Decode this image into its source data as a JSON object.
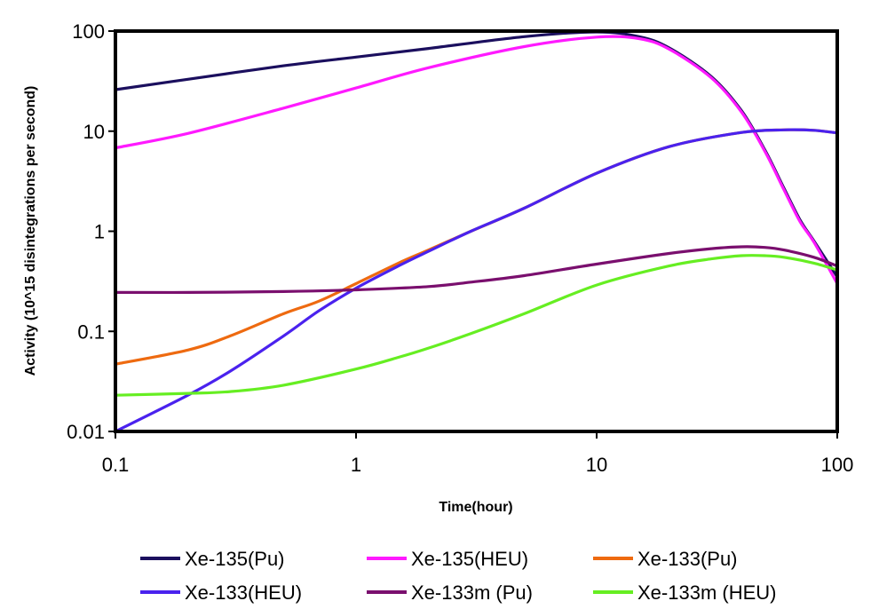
{
  "chart_data": {
    "type": "line",
    "title": "",
    "xlabel": "Time(hour)",
    "ylabel": "Activity (10^15 disintegrations per second)",
    "x_scale": "log",
    "y_scale": "log",
    "xlim": [
      0.1,
      100
    ],
    "ylim": [
      0.01,
      100
    ],
    "x_ticks": [
      "0.1",
      "1",
      "10",
      "100"
    ],
    "y_ticks": [
      "100",
      "10",
      "1",
      "0.1",
      "0.01"
    ],
    "grid": false,
    "legend_position": "bottom",
    "series": [
      {
        "name": "Xe-135(Pu)",
        "color": "#1b0f5e",
        "x": [
          0.1,
          0.2,
          0.5,
          1,
          2,
          5,
          10,
          15,
          20,
          30,
          40,
          50,
          60,
          70,
          80,
          100
        ],
        "y": [
          26,
          33,
          45,
          55,
          67,
          88,
          98,
          88,
          68,
          35,
          16,
          6.5,
          2.7,
          1.3,
          0.8,
          0.35
        ]
      },
      {
        "name": "Xe-135(HEU)",
        "color": "#ff1aff",
        "x": [
          0.1,
          0.2,
          0.5,
          1,
          2,
          5,
          10,
          15,
          20,
          30,
          40,
          50,
          60,
          70,
          80,
          100
        ],
        "y": [
          6.8,
          9.5,
          17,
          27,
          43,
          70,
          87,
          84,
          66,
          34,
          15.5,
          6.3,
          2.6,
          1.25,
          0.78,
          0.3
        ]
      },
      {
        "name": "Xe-133(Pu)",
        "color": "#ee6a10",
        "x": [
          0.1,
          0.2,
          0.3,
          0.5,
          0.7,
          1,
          1.5,
          2,
          3,
          5,
          10,
          20,
          40,
          60,
          80,
          100
        ],
        "y": [
          0.047,
          0.065,
          0.09,
          0.15,
          0.2,
          0.3,
          0.48,
          0.65,
          1.0,
          1.7,
          3.8,
          7.0,
          9.7,
          10.3,
          10.2,
          9.6
        ]
      },
      {
        "name": "Xe-133(HEU)",
        "color": "#4a22ee",
        "x": [
          0.1,
          0.2,
          0.3,
          0.5,
          0.7,
          1,
          1.5,
          2,
          3,
          5,
          10,
          20,
          40,
          60,
          80,
          100
        ],
        "y": [
          0.01,
          0.023,
          0.04,
          0.09,
          0.16,
          0.27,
          0.45,
          0.63,
          1.0,
          1.7,
          3.8,
          7.0,
          9.7,
          10.3,
          10.2,
          9.6
        ]
      },
      {
        "name": "Xe-133m (Pu)",
        "color": "#7a0f6e",
        "x": [
          0.1,
          0.2,
          0.5,
          1,
          2,
          3,
          5,
          10,
          20,
          30,
          40,
          50,
          60,
          80,
          100
        ],
        "y": [
          0.245,
          0.245,
          0.25,
          0.26,
          0.28,
          0.31,
          0.36,
          0.47,
          0.6,
          0.67,
          0.7,
          0.69,
          0.65,
          0.55,
          0.45
        ]
      },
      {
        "name": "Xe-133m (HEU)",
        "color": "#66ee22",
        "x": [
          0.1,
          0.2,
          0.3,
          0.5,
          1,
          1.5,
          2,
          3,
          5,
          10,
          20,
          30,
          40,
          50,
          60,
          80,
          100
        ],
        "y": [
          0.023,
          0.024,
          0.025,
          0.029,
          0.042,
          0.055,
          0.068,
          0.095,
          0.15,
          0.29,
          0.45,
          0.53,
          0.57,
          0.57,
          0.55,
          0.48,
          0.41
        ]
      }
    ]
  }
}
